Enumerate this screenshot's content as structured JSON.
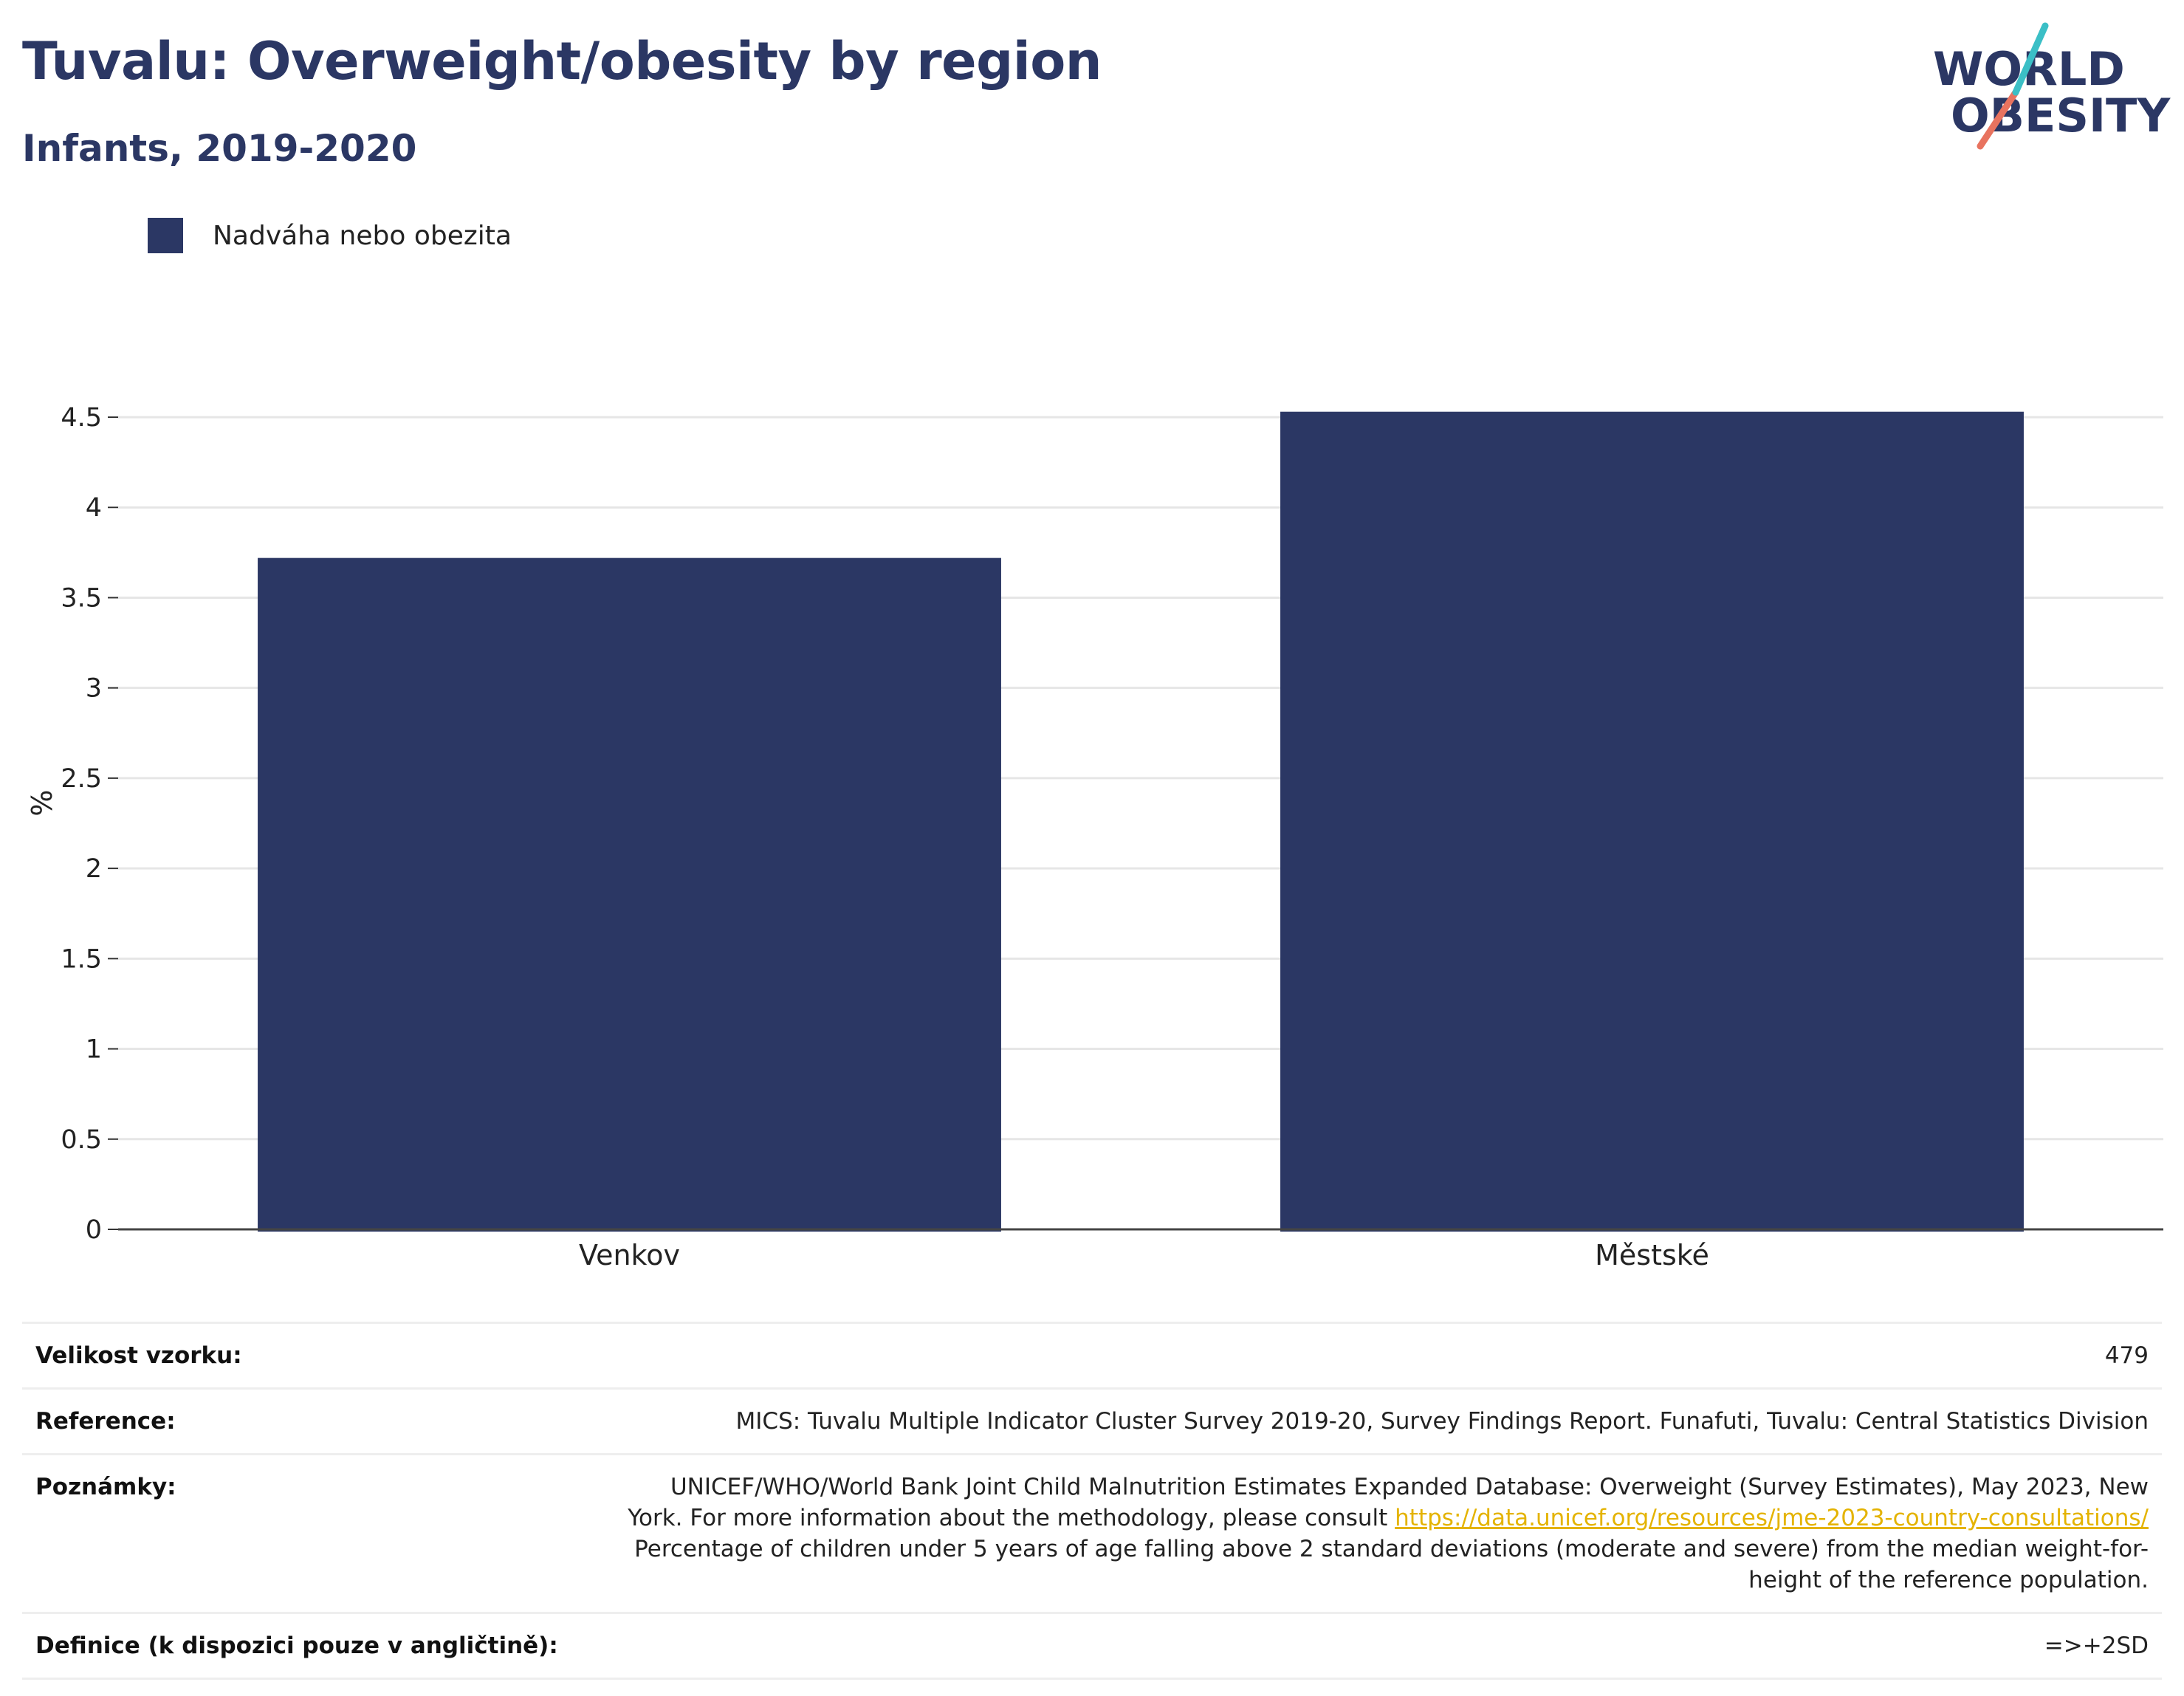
{
  "header": {
    "title": "Tuvalu: Overweight/obesity by region",
    "subtitle": "Infants, 2019-2020"
  },
  "logo": {
    "line1": "WORLD",
    "line2": "OBESITY"
  },
  "colors": {
    "bar": "#2b3764",
    "title": "#2b3764",
    "grid": "#e6e6e6",
    "link": "#e4b300"
  },
  "chart_data": {
    "type": "bar",
    "categories": [
      "Venkov",
      "Městské"
    ],
    "series": [
      {
        "name": "Nadváha nebo obezita",
        "values": [
          3.72,
          4.53
        ]
      }
    ],
    "ylabel": "%",
    "ylim": [
      0,
      4.5
    ],
    "yticks": [
      0,
      0.5,
      1,
      1.5,
      2,
      2.5,
      3,
      3.5,
      4,
      4.5
    ],
    "ytick_labels": [
      "0",
      "0.5",
      "1",
      "1.5",
      "2",
      "2.5",
      "3",
      "3.5",
      "4",
      "4.5"
    ],
    "grid": true,
    "legend": "top-left"
  },
  "info": {
    "sample_label": "Velikost vzorku:",
    "sample_value": "479",
    "reference_label": "Reference:",
    "reference_value": "MICS: Tuvalu Multiple Indicator Cluster Survey 2019-20, Survey Findings Report. Funafuti, Tuvalu: Central Statistics Division",
    "notes_label": "Poznámky:",
    "notes_line1": "UNICEF/WHO/World Bank Joint Child Malnutrition Estimates Expanded Database: Overweight (Survey Estimates), May 2023, New",
    "notes_line2_text": "York. For more information about the methodology, please consult ",
    "notes_link": "https://data.unicef.org/resources/jme-2023-country-consultations/",
    "notes_line3": "Percentage of children under 5 years of age falling above 2 standard deviations (moderate and severe) from the median weight-for-",
    "notes_line4": "height of the reference population.",
    "definition_label": "Definice (k dispozici pouze v angličtině):",
    "definition_value": "=>+2SD"
  }
}
